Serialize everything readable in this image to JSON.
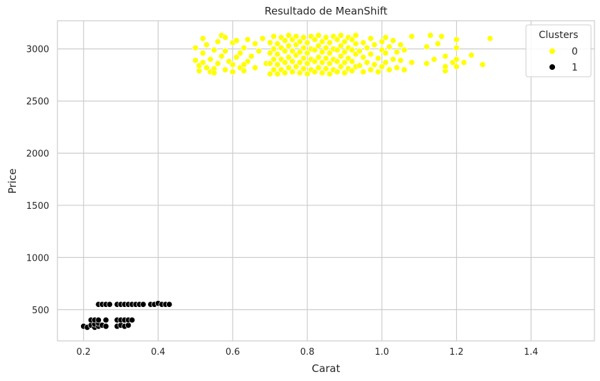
{
  "chart_data": {
    "type": "scatter",
    "title": "Resultado de MeanShift",
    "xlabel": "Carat",
    "ylabel": "Price",
    "xlim": [
      0.13,
      1.57
    ],
    "ylim": [
      200,
      3270
    ],
    "x_ticks": [
      0.2,
      0.4,
      0.6,
      0.8,
      1.0,
      1.2,
      1.4
    ],
    "x_tick_labels": [
      "0.2",
      "0.4",
      "0.6",
      "0.8",
      "1.0",
      "1.2",
      "1.4"
    ],
    "y_ticks": [
      500,
      1000,
      1500,
      2000,
      2500,
      3000
    ],
    "y_tick_labels": [
      "500",
      "1000",
      "1500",
      "2000",
      "2500",
      "3000"
    ],
    "grid": true,
    "legend": {
      "title": "Clusters",
      "placement": "top-right"
    },
    "series": [
      {
        "name": "0",
        "color": "#ffff00",
        "points": [
          [
            0.5,
            2890
          ],
          [
            0.5,
            3010
          ],
          [
            0.51,
            2790
          ],
          [
            0.51,
            2840
          ],
          [
            0.52,
            2960
          ],
          [
            0.52,
            3100
          ],
          [
            0.53,
            2820
          ],
          [
            0.53,
            3040
          ],
          [
            0.54,
            2780
          ],
          [
            0.54,
            2900
          ],
          [
            0.55,
            2810
          ],
          [
            0.55,
            2990
          ],
          [
            0.56,
            2860
          ],
          [
            0.56,
            3070
          ],
          [
            0.57,
            2930
          ],
          [
            0.57,
            3130
          ],
          [
            0.58,
            2800
          ],
          [
            0.58,
            2980
          ],
          [
            0.59,
            2880
          ],
          [
            0.6,
            2780
          ],
          [
            0.6,
            2850
          ],
          [
            0.6,
            3060
          ],
          [
            0.61,
            2920
          ],
          [
            0.61,
            3080
          ],
          [
            0.62,
            2820
          ],
          [
            0.62,
            2960
          ],
          [
            0.63,
            2790
          ],
          [
            0.63,
            3010
          ],
          [
            0.64,
            2880
          ],
          [
            0.64,
            3090
          ],
          [
            0.65,
            2930
          ],
          [
            0.66,
            2820
          ],
          [
            0.66,
            3050
          ],
          [
            0.67,
            2980
          ],
          [
            0.68,
            3100
          ],
          [
            0.69,
            2860
          ],
          [
            0.52,
            2870
          ],
          [
            0.55,
            2770
          ],
          [
            0.58,
            3110
          ],
          [
            0.63,
            2850
          ],
          [
            0.7,
            2760
          ],
          [
            0.7,
            2860
          ],
          [
            0.7,
            2960
          ],
          [
            0.7,
            3060
          ],
          [
            0.71,
            2800
          ],
          [
            0.71,
            2900
          ],
          [
            0.71,
            3000
          ],
          [
            0.71,
            3120
          ],
          [
            0.72,
            2760
          ],
          [
            0.72,
            2850
          ],
          [
            0.72,
            2950
          ],
          [
            0.72,
            3050
          ],
          [
            0.73,
            2800
          ],
          [
            0.73,
            2900
          ],
          [
            0.73,
            3010
          ],
          [
            0.73,
            3110
          ],
          [
            0.74,
            2770
          ],
          [
            0.74,
            2870
          ],
          [
            0.74,
            2980
          ],
          [
            0.74,
            3080
          ],
          [
            0.75,
            2820
          ],
          [
            0.75,
            2920
          ],
          [
            0.75,
            3030
          ],
          [
            0.75,
            3130
          ],
          [
            0.76,
            2780
          ],
          [
            0.76,
            2880
          ],
          [
            0.76,
            2980
          ],
          [
            0.76,
            3090
          ],
          [
            0.77,
            2830
          ],
          [
            0.77,
            2940
          ],
          [
            0.77,
            3040
          ],
          [
            0.77,
            3120
          ],
          [
            0.78,
            2770
          ],
          [
            0.78,
            2870
          ],
          [
            0.78,
            2970
          ],
          [
            0.78,
            3070
          ],
          [
            0.79,
            2810
          ],
          [
            0.79,
            2910
          ],
          [
            0.79,
            3010
          ],
          [
            0.79,
            3110
          ],
          [
            0.8,
            2760
          ],
          [
            0.8,
            2860
          ],
          [
            0.8,
            2960
          ],
          [
            0.8,
            3060
          ],
          [
            0.81,
            2800
          ],
          [
            0.81,
            2900
          ],
          [
            0.81,
            3000
          ],
          [
            0.81,
            3120
          ],
          [
            0.82,
            2780
          ],
          [
            0.82,
            2880
          ],
          [
            0.82,
            2990
          ],
          [
            0.82,
            3090
          ],
          [
            0.83,
            2820
          ],
          [
            0.83,
            2920
          ],
          [
            0.83,
            3030
          ],
          [
            0.83,
            3130
          ],
          [
            0.84,
            2770
          ],
          [
            0.84,
            2870
          ],
          [
            0.84,
            2970
          ],
          [
            0.84,
            3070
          ],
          [
            0.85,
            2810
          ],
          [
            0.85,
            2910
          ],
          [
            0.85,
            3010
          ],
          [
            0.85,
            3110
          ],
          [
            0.86,
            2760
          ],
          [
            0.86,
            2860
          ],
          [
            0.86,
            2960
          ],
          [
            0.86,
            3060
          ],
          [
            0.87,
            2800
          ],
          [
            0.87,
            2900
          ],
          [
            0.87,
            3000
          ],
          [
            0.87,
            3120
          ],
          [
            0.88,
            2780
          ],
          [
            0.88,
            2880
          ],
          [
            0.88,
            2990
          ],
          [
            0.88,
            3090
          ],
          [
            0.89,
            2830
          ],
          [
            0.89,
            2930
          ],
          [
            0.89,
            3030
          ],
          [
            0.89,
            3130
          ],
          [
            0.9,
            2770
          ],
          [
            0.9,
            2870
          ],
          [
            0.9,
            2970
          ],
          [
            0.9,
            3070
          ],
          [
            0.91,
            2810
          ],
          [
            0.91,
            2910
          ],
          [
            0.91,
            3010
          ],
          [
            0.91,
            3110
          ],
          [
            0.92,
            2790
          ],
          [
            0.92,
            2880
          ],
          [
            0.92,
            2990
          ],
          [
            0.92,
            3090
          ],
          [
            0.93,
            2830
          ],
          [
            0.93,
            2950
          ],
          [
            0.93,
            3050
          ],
          [
            0.93,
            3130
          ],
          [
            0.94,
            2840
          ],
          [
            0.94,
            2980
          ],
          [
            0.95,
            2780
          ],
          [
            0.95,
            2920
          ],
          [
            0.95,
            3060
          ],
          [
            0.96,
            2870
          ],
          [
            0.96,
            3010
          ],
          [
            0.97,
            2800
          ],
          [
            0.97,
            2950
          ],
          [
            0.97,
            3100
          ],
          [
            0.98,
            2850
          ],
          [
            0.98,
            3040
          ],
          [
            0.99,
            2780
          ],
          [
            0.99,
            2910
          ],
          [
            1.0,
            2830
          ],
          [
            1.0,
            2990
          ],
          [
            1.0,
            3070
          ],
          [
            1.01,
            2870
          ],
          [
            1.01,
            2960
          ],
          [
            1.01,
            3110
          ],
          [
            1.02,
            2800
          ],
          [
            1.02,
            3020
          ],
          [
            1.03,
            2900
          ],
          [
            1.03,
            3080
          ],
          [
            1.04,
            2820
          ],
          [
            1.04,
            2970
          ],
          [
            1.05,
            2890
          ],
          [
            1.05,
            3040
          ],
          [
            1.06,
            2800
          ],
          [
            1.06,
            2990
          ],
          [
            1.08,
            3120
          ],
          [
            1.08,
            2870
          ],
          [
            1.12,
            2860
          ],
          [
            1.12,
            3020
          ],
          [
            1.13,
            3130
          ],
          [
            1.14,
            2900
          ],
          [
            1.15,
            3050
          ],
          [
            1.16,
            3120
          ],
          [
            1.17,
            2790
          ],
          [
            1.17,
            2830
          ],
          [
            1.17,
            2930
          ],
          [
            1.19,
            2870
          ],
          [
            1.2,
            3090
          ],
          [
            1.2,
            2900
          ],
          [
            1.2,
            3010
          ],
          [
            1.2,
            2830
          ],
          [
            1.22,
            2870
          ],
          [
            1.24,
            2940
          ],
          [
            1.27,
            2850
          ],
          [
            1.29,
            3100
          ]
        ]
      },
      {
        "name": "1",
        "color": "#000000",
        "points": [
          [
            0.2,
            340
          ],
          [
            0.21,
            330
          ],
          [
            0.22,
            350
          ],
          [
            0.22,
            400
          ],
          [
            0.23,
            330
          ],
          [
            0.23,
            360
          ],
          [
            0.23,
            400
          ],
          [
            0.24,
            340
          ],
          [
            0.24,
            370
          ],
          [
            0.24,
            400
          ],
          [
            0.24,
            550
          ],
          [
            0.25,
            350
          ],
          [
            0.25,
            550
          ],
          [
            0.26,
            340
          ],
          [
            0.26,
            400
          ],
          [
            0.26,
            550
          ],
          [
            0.27,
            550
          ],
          [
            0.29,
            340
          ],
          [
            0.29,
            400
          ],
          [
            0.29,
            550
          ],
          [
            0.3,
            350
          ],
          [
            0.3,
            400
          ],
          [
            0.3,
            550
          ],
          [
            0.31,
            340
          ],
          [
            0.31,
            400
          ],
          [
            0.31,
            550
          ],
          [
            0.32,
            350
          ],
          [
            0.32,
            550
          ],
          [
            0.32,
            400
          ],
          [
            0.33,
            400
          ],
          [
            0.33,
            550
          ],
          [
            0.34,
            550
          ],
          [
            0.35,
            550
          ],
          [
            0.36,
            550
          ],
          [
            0.38,
            550
          ],
          [
            0.39,
            550
          ],
          [
            0.4,
            560
          ],
          [
            0.41,
            550
          ],
          [
            0.42,
            550
          ],
          [
            0.43,
            550
          ]
        ]
      }
    ]
  }
}
